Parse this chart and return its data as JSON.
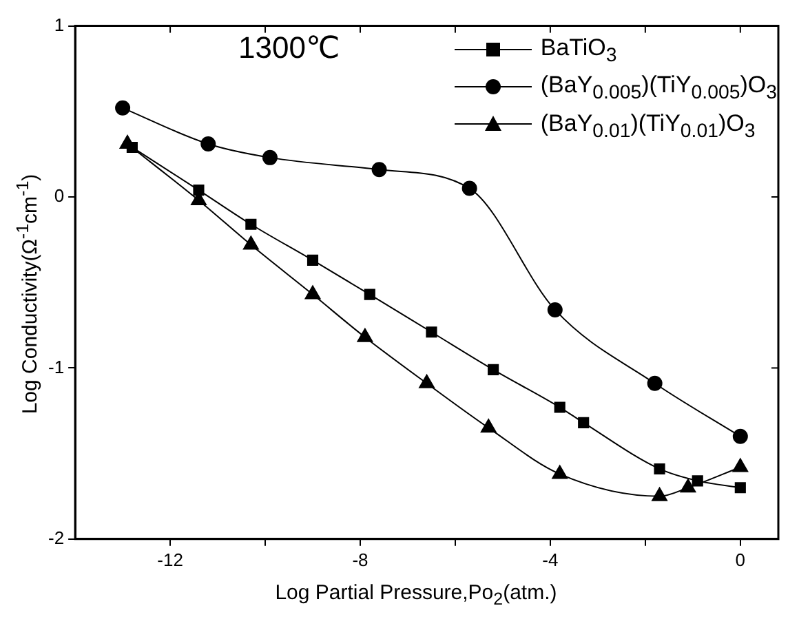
{
  "chart_data": {
    "type": "line",
    "xlabel": "Log Partial Pressure,Po$_{2}$(atm.)",
    "ylabel": "Log Conductivity(Ω$^{-1}$cm$^{-1}$)",
    "annotations": [
      "1300℃"
    ],
    "series": [
      {
        "name": "BaTiO$_{3}$",
        "color": "#000000",
        "marker": "square",
        "x": [
          -12.8,
          -11.4,
          -10.3,
          -9.0,
          -7.8,
          -6.5,
          -5.2,
          -3.8,
          -3.3,
          -1.7,
          -0.9,
          0
        ],
        "values": [
          0.29,
          0.04,
          -0.16,
          -0.37,
          -0.57,
          -0.79,
          -1.01,
          -1.23,
          -1.32,
          -1.59,
          -1.66,
          -1.7
        ]
      },
      {
        "name": "(BaY$_{0.005}$)(TiY$_{0.005}$)O$_{3}$",
        "color": "#000000",
        "marker": "circle",
        "x": [
          -13.0,
          -11.2,
          -9.9,
          -7.6,
          -5.7,
          -3.9,
          -1.8,
          0
        ],
        "values": [
          0.52,
          0.31,
          0.23,
          0.16,
          0.05,
          -0.66,
          -1.09,
          -1.4
        ]
      },
      {
        "name": "(BaY$_{0.01}$)(TiY$_{0.01}$)O$_{3}$",
        "color": "#000000",
        "marker": "triangle",
        "x": [
          -12.9,
          -11.4,
          -10.3,
          -9.0,
          -7.9,
          -6.6,
          -5.3,
          -3.8,
          -1.7,
          -1.1,
          0
        ],
        "values": [
          0.31,
          -0.02,
          -0.28,
          -0.57,
          -0.82,
          -1.09,
          -1.35,
          -1.62,
          -1.75,
          -1.7,
          -1.58
        ]
      }
    ],
    "xlim": [
      -14,
      0.8
    ],
    "xticks": [
      -12,
      {
        "value": -10,
        "label": null
      },
      -8,
      {
        "value": -6,
        "label": null
      },
      -4,
      {
        "value": -2,
        "label": null
      },
      0
    ],
    "ylim": [
      -2,
      1
    ],
    "yticks": [
      -2,
      -1,
      0,
      1
    ],
    "grid": false,
    "legend": "top right",
    "line_style": "solid"
  }
}
